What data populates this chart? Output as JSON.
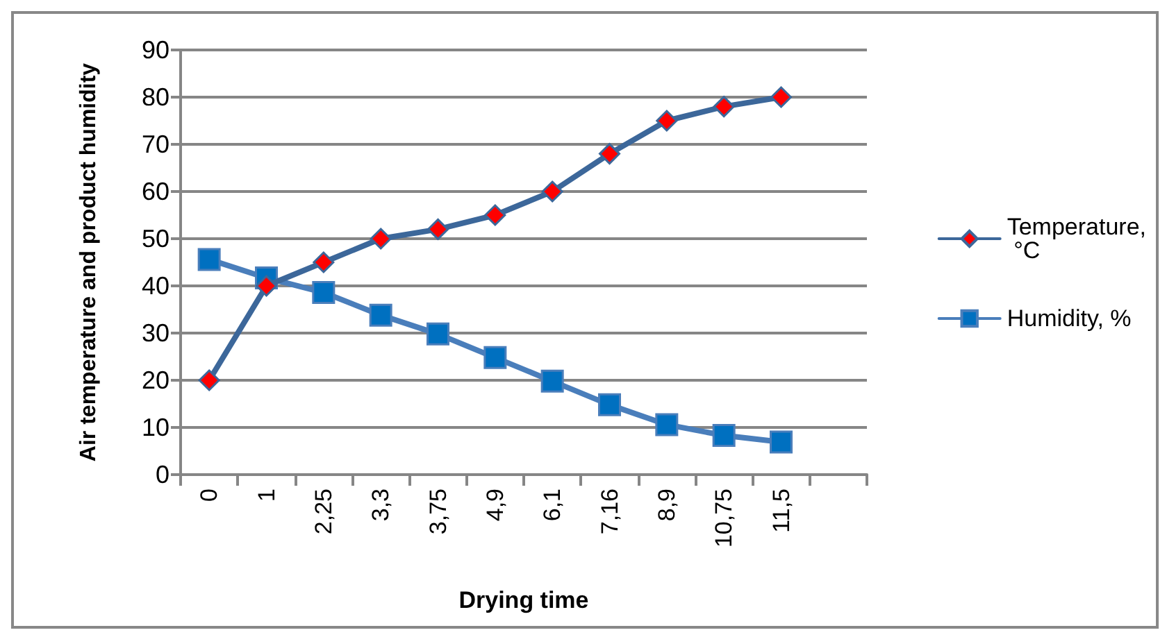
{
  "chart_data": {
    "type": "line",
    "xlabel": "Drying time",
    "ylabel": "Air temperature and product humidity",
    "categories": [
      "0",
      "1",
      "2,25",
      "3,3",
      "3,75",
      "4,9",
      "6,1",
      "7,16",
      "8,9",
      "10,75",
      "11,5",
      null
    ],
    "series": [
      {
        "name": "Temperature, °C",
        "color": "#3c679a",
        "marker": "diamond",
        "values": [
          20,
          40,
          45,
          50,
          52,
          55,
          60,
          68,
          75,
          78,
          80,
          null
        ]
      },
      {
        "name": "Humidity, %",
        "color": "#4a7ebb",
        "marker": "square",
        "values": [
          45.6,
          41.7,
          38.6,
          33.8,
          29.8,
          24.8,
          19.8,
          14.8,
          10.6,
          8.3,
          6.9,
          null
        ]
      }
    ],
    "ylim": [
      0,
      90
    ],
    "yticks": [
      0,
      10,
      20,
      30,
      40,
      50,
      60,
      70,
      80,
      90
    ],
    "grid": "y",
    "legend": "right"
  }
}
